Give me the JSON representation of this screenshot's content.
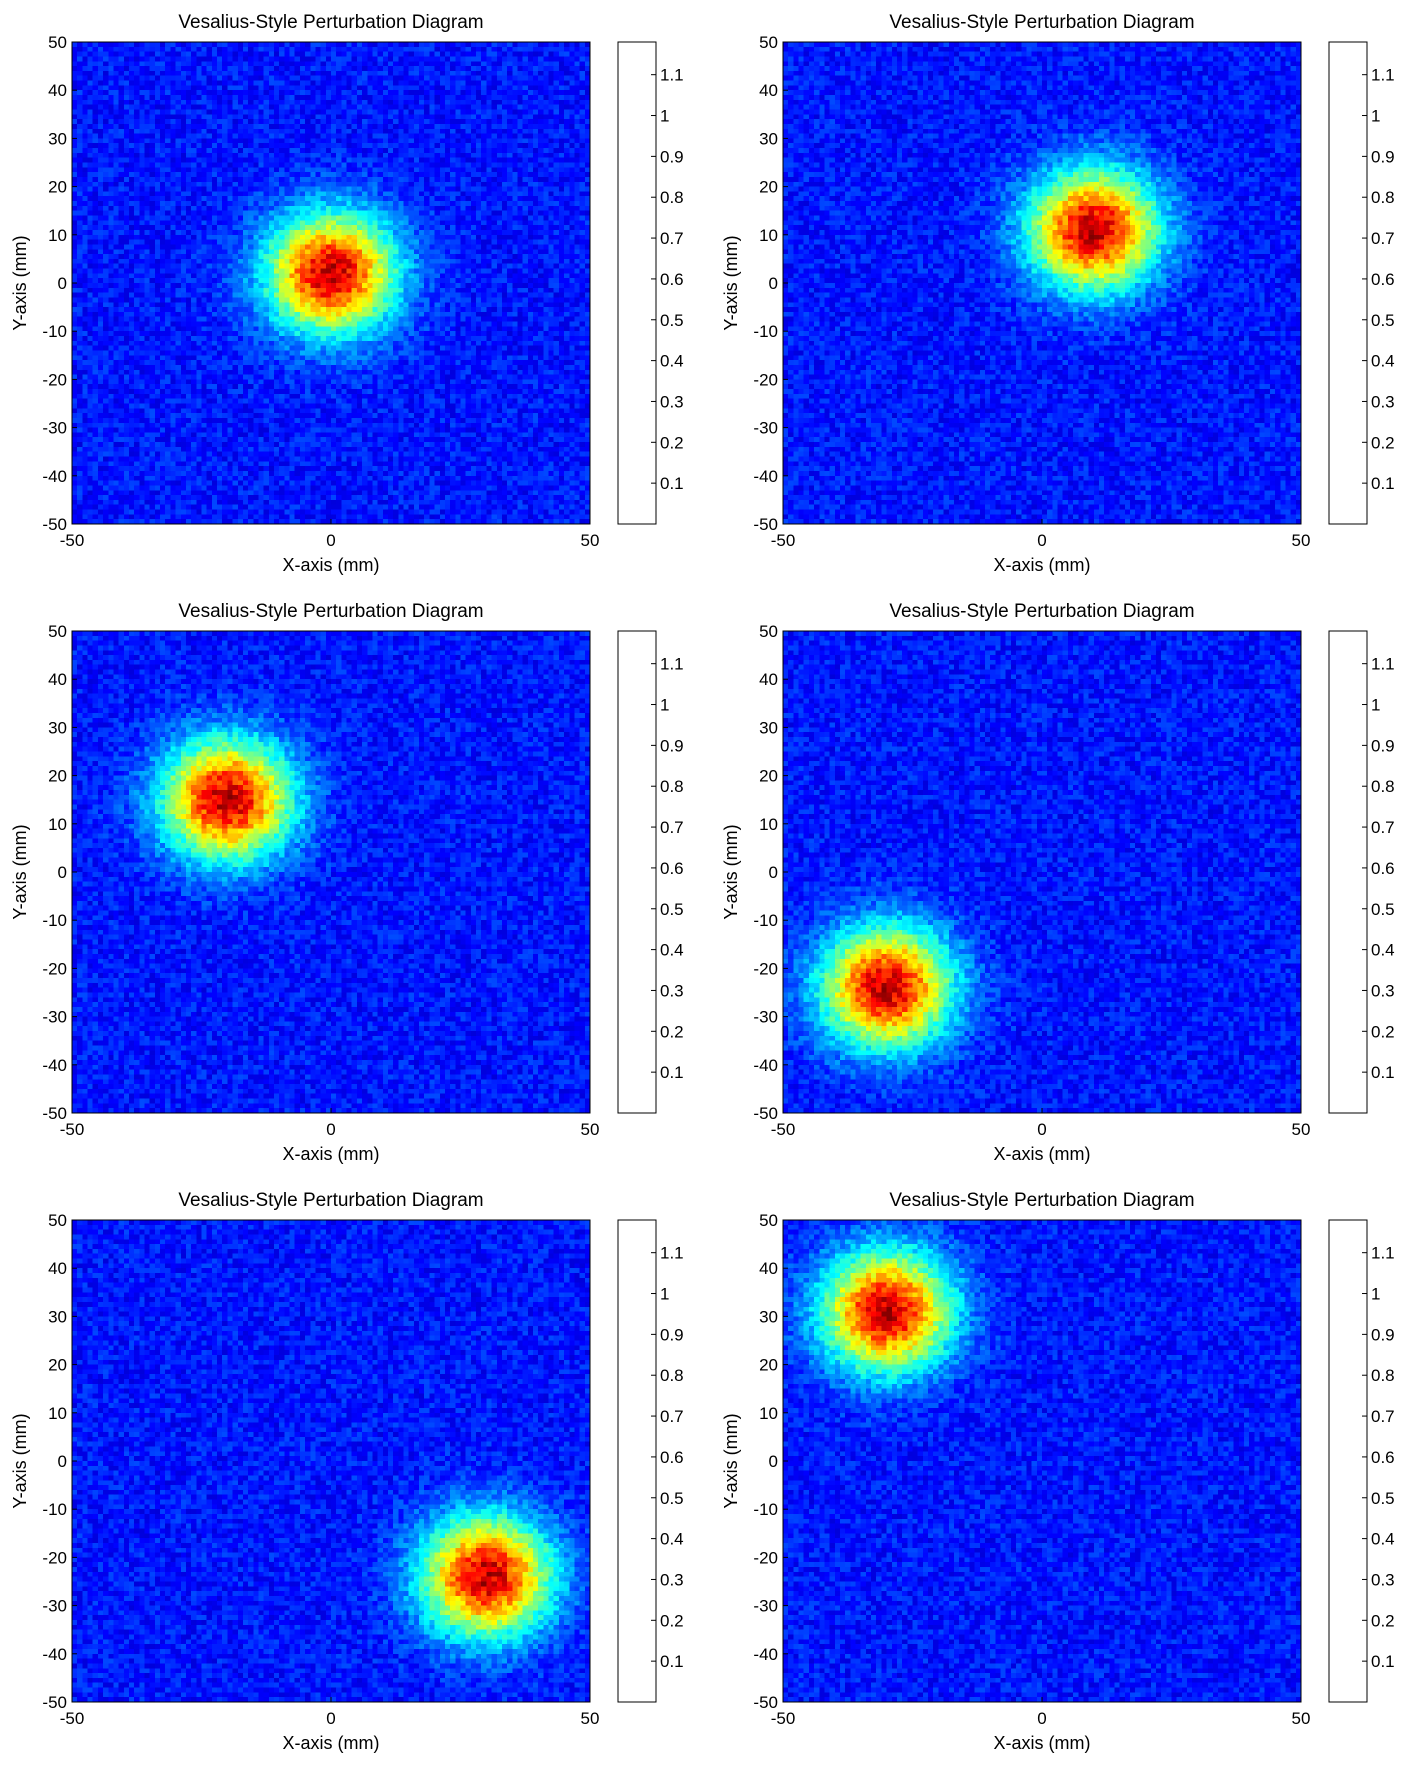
{
  "chart_data": [
    {
      "type": "heatmap",
      "title": "Vesalius-Style Perturbation Diagram",
      "xlabel": "X-axis (mm)",
      "ylabel": "Y-axis (mm)",
      "xlim": [
        -50,
        50
      ],
      "ylim": [
        -50,
        50
      ],
      "xticks": [
        "-50",
        "0",
        "50"
      ],
      "yticks": [
        "50",
        "40",
        "30",
        "20",
        "10",
        "0",
        "-10",
        "-20",
        "-30",
        "-40",
        "-50"
      ],
      "colorbar_ticks": [
        "1.1",
        "1",
        "0.9",
        "0.8",
        "0.7",
        "0.6",
        "0.5",
        "0.4",
        "0.3",
        "0.2",
        "0.1"
      ],
      "colorbar_range": [
        0,
        1.18
      ],
      "colormap": "jet",
      "peak_center": [
        0,
        2
      ],
      "peak_value": 1.1,
      "peak_sigma": 8.5,
      "background_level": 0.17
    },
    {
      "type": "heatmap",
      "title": "Vesalius-Style Perturbation Diagram",
      "xlabel": "X-axis (mm)",
      "ylabel": "Y-axis (mm)",
      "xlim": [
        -50,
        50
      ],
      "ylim": [
        -50,
        50
      ],
      "xticks": [
        "-50",
        "0",
        "50"
      ],
      "yticks": [
        "50",
        "40",
        "30",
        "20",
        "10",
        "0",
        "-10",
        "-20",
        "-30",
        "-40",
        "-50"
      ],
      "colorbar_ticks": [
        "1.1",
        "1",
        "0.9",
        "0.8",
        "0.7",
        "0.6",
        "0.5",
        "0.4",
        "0.3",
        "0.2",
        "0.1"
      ],
      "colorbar_range": [
        0,
        1.18
      ],
      "colormap": "jet",
      "peak_center": [
        10,
        11
      ],
      "peak_value": 1.1,
      "peak_sigma": 8.5,
      "background_level": 0.17
    },
    {
      "type": "heatmap",
      "title": "Vesalius-Style Perturbation Diagram",
      "xlabel": "X-axis (mm)",
      "ylabel": "Y-axis (mm)",
      "xlim": [
        -50,
        50
      ],
      "ylim": [
        -50,
        50
      ],
      "xticks": [
        "-50",
        "0",
        "50"
      ],
      "yticks": [
        "50",
        "40",
        "30",
        "20",
        "10",
        "0",
        "-10",
        "-20",
        "-30",
        "-40",
        "-50"
      ],
      "colorbar_ticks": [
        "1.1",
        "1",
        "0.9",
        "0.8",
        "0.7",
        "0.6",
        "0.5",
        "0.4",
        "0.3",
        "0.2",
        "0.1"
      ],
      "colorbar_range": [
        0,
        1.18
      ],
      "colormap": "jet",
      "peak_center": [
        -20,
        15
      ],
      "peak_value": 1.1,
      "peak_sigma": 8.5,
      "background_level": 0.17
    },
    {
      "type": "heatmap",
      "title": "Vesalius-Style Perturbation Diagram",
      "xlabel": "X-axis (mm)",
      "ylabel": "Y-axis (mm)",
      "xlim": [
        -50,
        50
      ],
      "ylim": [
        -50,
        50
      ],
      "xticks": [
        "-50",
        "0",
        "50"
      ],
      "yticks": [
        "50",
        "40",
        "30",
        "20",
        "10",
        "0",
        "-10",
        "-20",
        "-30",
        "-40",
        "-50"
      ],
      "colorbar_ticks": [
        "1.1",
        "1",
        "0.9",
        "0.8",
        "0.7",
        "0.6",
        "0.5",
        "0.4",
        "0.3",
        "0.2",
        "0.1"
      ],
      "colorbar_range": [
        0,
        1.18
      ],
      "colormap": "jet",
      "peak_center": [
        -30,
        -24
      ],
      "peak_value": 1.1,
      "peak_sigma": 8.5,
      "background_level": 0.17
    },
    {
      "type": "heatmap",
      "title": "Vesalius-Style Perturbation Diagram",
      "xlabel": "X-axis (mm)",
      "ylabel": "Y-axis (mm)",
      "xlim": [
        -50,
        50
      ],
      "ylim": [
        -50,
        50
      ],
      "xticks": [
        "-50",
        "0",
        "50"
      ],
      "yticks": [
        "50",
        "40",
        "30",
        "20",
        "10",
        "0",
        "-10",
        "-20",
        "-30",
        "-40",
        "-50"
      ],
      "colorbar_ticks": [
        "1.1",
        "1",
        "0.9",
        "0.8",
        "0.7",
        "0.6",
        "0.5",
        "0.4",
        "0.3",
        "0.2",
        "0.1"
      ],
      "colorbar_range": [
        0,
        1.18
      ],
      "colormap": "jet",
      "peak_center": [
        30,
        -24
      ],
      "peak_value": 1.1,
      "peak_sigma": 8.5,
      "background_level": 0.17
    },
    {
      "type": "heatmap",
      "title": "Vesalius-Style Perturbation Diagram",
      "xlabel": "X-axis (mm)",
      "ylabel": "Y-axis (mm)",
      "xlim": [
        -50,
        50
      ],
      "ylim": [
        -50,
        50
      ],
      "xticks": [
        "-50",
        "0",
        "50"
      ],
      "yticks": [
        "50",
        "40",
        "30",
        "20",
        "10",
        "0",
        "-10",
        "-20",
        "-30",
        "-40",
        "-50"
      ],
      "colorbar_ticks": [
        "1.1",
        "1",
        "0.9",
        "0.8",
        "0.7",
        "0.6",
        "0.5",
        "0.4",
        "0.3",
        "0.2",
        "0.1"
      ],
      "colorbar_range": [
        0,
        1.18
      ],
      "colormap": "jet",
      "peak_center": [
        -30,
        31
      ],
      "peak_value": 1.1,
      "peak_sigma": 8.5,
      "background_level": 0.17
    }
  ]
}
